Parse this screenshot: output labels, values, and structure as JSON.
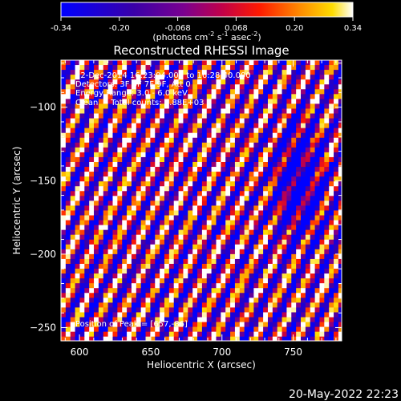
{
  "chart_data": {
    "type": "heatmap",
    "title": "Reconstructed RHESSI Image",
    "xlabel": "Heliocentric X (arcsec)",
    "ylabel": "Heliocentric Y (arcsec)",
    "xlim": [
      587,
      784
    ],
    "ylim": [
      -259,
      -68
    ],
    "x_ticks": [
      600,
      650,
      700,
      750
    ],
    "y_ticks": [
      -100,
      -150,
      -200,
      -250
    ],
    "colorbar": {
      "min": -0.34,
      "max": 0.34,
      "ticks": [
        "-0.34",
        "-0.20",
        "-0.068",
        "0.068",
        "0.20",
        "0.34"
      ],
      "label": "(photons cm",
      "label_sup1": "-2",
      "label_mid": " s",
      "label_sup2": "-1",
      "label_end": " asec",
      "label_sup3": "-2",
      "label_close": ")"
    },
    "annotations": [
      "22-Dec-2014 16:23:04.000 to 16:28:40.000",
      "Detectors: 3F 6F 7F 9F, Att 0",
      "Energy Range: 3.0 - 6.0 keV",
      "Clean     Total counts: 1.88E+03"
    ],
    "peak_label": "Position of Peak = [657,-86]",
    "pattern": {
      "description_free": true,
      "stripe_angle_deg": 62,
      "stripe_period_arcsec": 13,
      "blue_trough_center": [
        752,
        -150
      ]
    }
  },
  "footer": {
    "date": "20-May-2022 22:23"
  }
}
